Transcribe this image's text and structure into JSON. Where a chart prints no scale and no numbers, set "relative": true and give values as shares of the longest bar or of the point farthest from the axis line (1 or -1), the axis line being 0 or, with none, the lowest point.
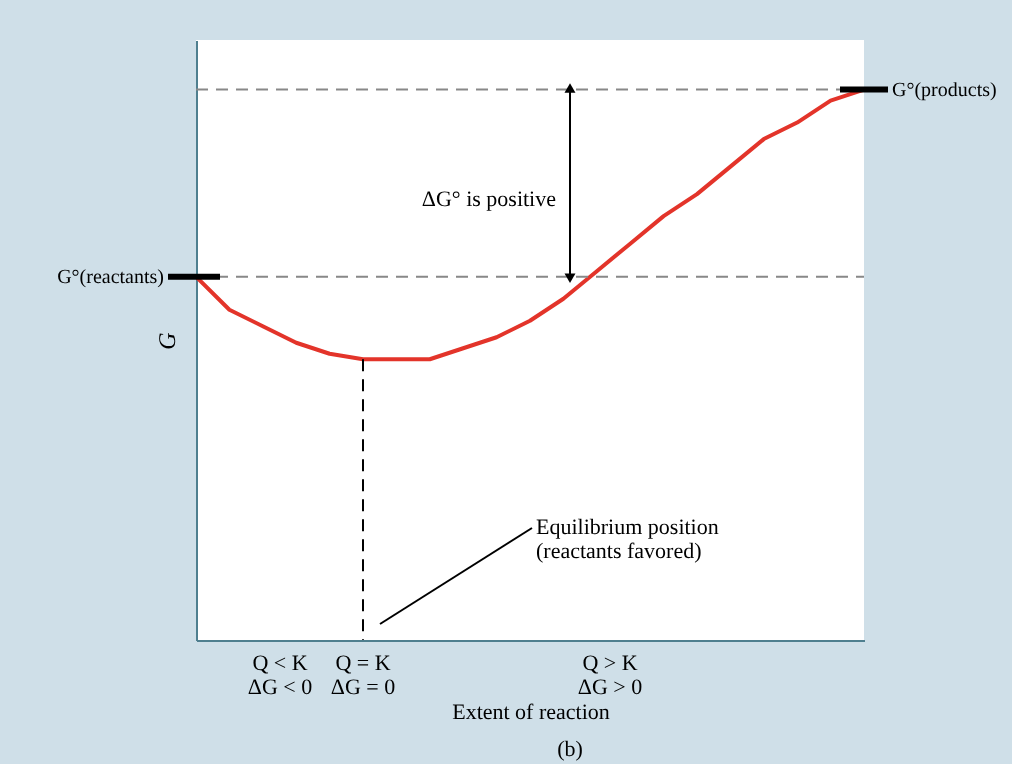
{
  "chart_data": {
    "type": "line",
    "relative": true,
    "xlabel": "Extent of reaction",
    "ylabel": "G",
    "categories": [
      null,
      null,
      null,
      null,
      null,
      null,
      null,
      null,
      null,
      null,
      null,
      null,
      null,
      null,
      null,
      null,
      null,
      null,
      null,
      null,
      null
    ],
    "series": [
      {
        "color": "#e3342a",
        "values": [
          0.66,
          0.6,
          0.57,
          0.54,
          0.52,
          0.51,
          0.51,
          0.51,
          0.53,
          0.55,
          0.58,
          0.62,
          0.67,
          0.72,
          0.77,
          0.81,
          0.86,
          0.91,
          0.94,
          0.98,
          1.0
        ]
      }
    ],
    "ref_lines": [
      {
        "axis": "y",
        "value": 0.66,
        "label": "G°(reactants)",
        "color": "#888888",
        "line_style": "dashed"
      },
      {
        "axis": "y",
        "value": 1.0,
        "label": "G°(products)",
        "color": "#888888",
        "line_style": "dashed"
      }
    ],
    "annotations": [
      "ΔG° is positive",
      "Equilibrium position\n(reactants favored)",
      "Q < K\nΔG < 0",
      "Q > K\nΔG > 0",
      "(b)",
      "Q = K\nΔG = 0"
    ],
    "line_style": "solid",
    "marker": "none",
    "grid": false
  }
}
